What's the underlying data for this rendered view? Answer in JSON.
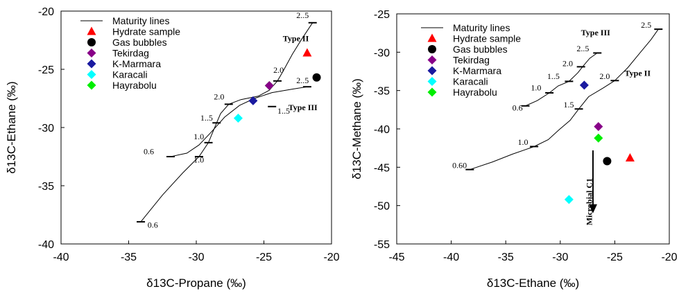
{
  "chart_data": [
    {
      "type": "line",
      "xlabel": "δ13C-Propane (‰)",
      "ylabel": "δ13C-Ethane (‰)",
      "xlim": [
        -40,
        -20
      ],
      "ylim": [
        -40,
        -20
      ],
      "xticks": [
        "-40",
        "-35",
        "-30",
        "-25",
        "-20"
      ],
      "yticks": [
        "-40",
        "-35",
        "-30",
        "-25",
        "-20"
      ],
      "grid": false,
      "legend_position": "top-left",
      "legend": [
        "Maturity lines",
        "Hydrate sample",
        "Gas bubbles",
        "Tekirdag",
        "K-Marmara",
        "Karacali",
        "Hayrabolu"
      ],
      "series": [
        {
          "name": "Maturity lines",
          "role": "line",
          "curve": "type-ii",
          "points": [
            [
              -34.1,
              -38.1
            ],
            [
              -32.5,
              -35.8
            ],
            [
              -31.0,
              -33.9
            ],
            [
              -29.8,
              -32.5
            ],
            [
              -29.1,
              -31.3
            ],
            [
              -28.5,
              -29.6
            ],
            [
              -28.2,
              -28.8
            ],
            [
              -27.6,
              -28.0
            ],
            [
              -26.7,
              -27.6
            ],
            [
              -25.4,
              -27.3
            ],
            [
              -24.6,
              -26.8
            ],
            [
              -24.0,
              -26.0
            ],
            [
              -23.6,
              -25.2
            ],
            [
              -22.9,
              -23.7
            ],
            [
              -22.2,
              -22.4
            ],
            [
              -21.4,
              -21.0
            ]
          ]
        },
        {
          "name": "Maturity lines",
          "role": "line",
          "curve": "type-iii",
          "points": [
            [
              -31.9,
              -32.5
            ],
            [
              -30.7,
              -32.2
            ],
            [
              -29.8,
              -31.5
            ],
            [
              -28.9,
              -30.4
            ],
            [
              -27.9,
              -29.1
            ],
            [
              -26.8,
              -28.1
            ],
            [
              -25.7,
              -27.5
            ],
            [
              -24.4,
              -27.0
            ],
            [
              -22.9,
              -26.7
            ],
            [
              -21.8,
              -26.5
            ]
          ]
        },
        {
          "name": "Hydrate sample",
          "marker": "triangle",
          "color": "#ff0000",
          "points": [
            [
              -21.8,
              -23.6
            ]
          ]
        },
        {
          "name": "Gas bubbles",
          "marker": "circle",
          "color": "#000000",
          "points": [
            [
              -21.1,
              -25.7
            ]
          ]
        },
        {
          "name": "K-Marmara",
          "marker": "diamond",
          "color": "#1a1aa0",
          "points": [
            [
              -25.8,
              -27.7
            ]
          ]
        },
        {
          "name": "Karacali",
          "marker": "diamond",
          "color": "#00ffff",
          "points": [
            [
              -26.9,
              -29.2
            ]
          ]
        },
        {
          "name": "Hayrabolu",
          "marker": "diamond",
          "color": "#00ee00",
          "points": [
            [
              -24.6,
              -26.4
            ]
          ]
        },
        {
          "name": "Tekirdag",
          "marker": "diamond",
          "color": "#880088",
          "points": [
            [
              -24.6,
              -26.4
            ]
          ]
        }
      ],
      "tick_marks": [
        [
          -34.1,
          -38.1
        ],
        [
          -29.8,
          -32.5
        ],
        [
          -29.1,
          -31.3
        ],
        [
          -28.5,
          -29.6
        ],
        [
          -27.6,
          -28.0
        ],
        [
          -24.0,
          -26.0
        ],
        [
          -21.4,
          -21.0
        ],
        [
          -31.9,
          -32.5
        ],
        [
          -24.4,
          -28.2
        ],
        [
          -21.8,
          -26.5
        ]
      ],
      "annotations": [
        {
          "text": "0.6",
          "x": -33.6,
          "y": -38.6
        },
        {
          "text": "1.0",
          "x": -30.2,
          "y": -31.0
        },
        {
          "text": "1..5",
          "x": -29.7,
          "y": -29.4
        },
        {
          "text": "2.0",
          "x": -28.7,
          "y": -27.6
        },
        {
          "text": "2.0",
          "x": -24.3,
          "y": -25.3
        },
        {
          "text": "2..5",
          "x": -22.6,
          "y": -20.6
        },
        {
          "text": "2..5",
          "x": -22.6,
          "y": -26.2
        },
        {
          "text": "0.6",
          "x": -33.9,
          "y": -32.3
        },
        {
          "text": "1.0",
          "x": -30.2,
          "y": -33.0
        },
        {
          "text": "1..5",
          "x": -24.0,
          "y": -28.8
        },
        {
          "text": "Type II",
          "x": -23.6,
          "y": -22.6,
          "bold": true
        },
        {
          "text": "Type III",
          "x": -23.2,
          "y": -28.5,
          "bold": true
        }
      ]
    },
    {
      "type": "line",
      "xlabel": "δ13C-Ethane (‰)",
      "ylabel": "δ13C-Methane (‰)",
      "xlim": [
        -45,
        -20
      ],
      "ylim": [
        -55,
        -25
      ],
      "xticks": [
        "-45",
        "-40",
        "-35",
        "-30",
        "-25",
        "-20"
      ],
      "yticks": [
        "-55",
        "-50",
        "-45",
        "-40",
        "-35",
        "-30",
        "-25"
      ],
      "grid": false,
      "legend_position": "top-left",
      "legend": [
        "Maturity lines",
        "Hydrate sample",
        "Gas bubbles",
        "Tekirdag",
        "K-Marmara",
        "Karacali",
        "Hayrabolu"
      ],
      "series": [
        {
          "name": "Maturity lines",
          "role": "line",
          "curve": "type-ii",
          "points": [
            [
              -38.3,
              -45.3
            ],
            [
              -36.2,
              -44.3
            ],
            [
              -34.4,
              -43.3
            ],
            [
              -32.4,
              -42.3
            ],
            [
              -31.1,
              -41.4
            ],
            [
              -30.1,
              -40.1
            ],
            [
              -29.1,
              -38.9
            ],
            [
              -28.3,
              -37.4
            ],
            [
              -27.4,
              -35.8
            ],
            [
              -26.1,
              -34.7
            ],
            [
              -25.0,
              -33.7
            ],
            [
              -23.8,
              -32.0
            ],
            [
              -22.7,
              -30.1
            ],
            [
              -21.7,
              -28.4
            ],
            [
              -21.0,
              -27.0
            ]
          ]
        },
        {
          "name": "Maturity lines",
          "role": "line",
          "curve": "type-iii",
          "points": [
            [
              -33.2,
              -37.0
            ],
            [
              -32.1,
              -36.3
            ],
            [
              -31.0,
              -35.3
            ],
            [
              -30.2,
              -34.4
            ],
            [
              -29.2,
              -33.8
            ],
            [
              -28.4,
              -32.7
            ],
            [
              -27.9,
              -31.8
            ],
            [
              -27.3,
              -30.8
            ],
            [
              -26.6,
              -30.1
            ]
          ]
        },
        {
          "name": "Hydrate sample",
          "marker": "triangle",
          "color": "#ff0000",
          "points": [
            [
              -23.6,
              -43.8
            ]
          ]
        },
        {
          "name": "Gas bubbles",
          "marker": "circle",
          "color": "#000000",
          "points": [
            [
              -25.7,
              -44.2
            ]
          ]
        },
        {
          "name": "Tekirdag",
          "marker": "diamond",
          "color": "#880088",
          "points": [
            [
              -26.5,
              -39.7
            ]
          ]
        },
        {
          "name": "K-Marmara",
          "marker": "diamond",
          "color": "#1a1aa0",
          "points": [
            [
              -27.8,
              -34.3
            ]
          ]
        },
        {
          "name": "Karacali",
          "marker": "diamond",
          "color": "#00ffff",
          "points": [
            [
              -29.2,
              -49.2
            ]
          ]
        },
        {
          "name": "Hayrabolu",
          "marker": "diamond",
          "color": "#00ee00",
          "points": [
            [
              -26.5,
              -41.2
            ]
          ]
        }
      ],
      "tick_marks": [
        [
          -38.3,
          -45.3
        ],
        [
          -32.4,
          -42.3
        ],
        [
          -28.3,
          -37.4
        ],
        [
          -25.0,
          -33.7
        ],
        [
          -21.0,
          -27.0
        ],
        [
          -33.2,
          -37.0
        ],
        [
          -31.0,
          -35.3
        ],
        [
          -29.2,
          -33.8
        ],
        [
          -28.1,
          -31.9
        ],
        [
          -26.6,
          -30.1
        ]
      ],
      "annotations": [
        {
          "text": "0.60",
          "x": -39.9,
          "y": -45.1
        },
        {
          "text": "1.0",
          "x": -33.9,
          "y": -42.1
        },
        {
          "text": "1.5",
          "x": -29.7,
          "y": -37.2
        },
        {
          "text": "2.0",
          "x": -26.4,
          "y": -33.5
        },
        {
          "text": "2.5",
          "x": -22.6,
          "y": -26.8
        },
        {
          "text": "0.6",
          "x": -34.4,
          "y": -37.6
        },
        {
          "text": "1.0",
          "x": -32.7,
          "y": -35.0
        },
        {
          "text": "1..5",
          "x": -31.2,
          "y": -33.5
        },
        {
          "text": "2.0",
          "x": -29.8,
          "y": -31.8
        },
        {
          "text": "2..5",
          "x": -28.5,
          "y": -29.9
        },
        {
          "text": "Type III",
          "x": -28.1,
          "y": -27.8,
          "bold": true
        },
        {
          "text": "Type II",
          "x": -24.1,
          "y": -33.1,
          "bold": true
        },
        {
          "text": "Microbial C1",
          "x": -27.1,
          "y": -49.5,
          "bold": true,
          "rotate": -90
        }
      ],
      "arrow": {
        "x": -27.0,
        "from_y": -42.8,
        "to_y": -51.0
      }
    }
  ]
}
